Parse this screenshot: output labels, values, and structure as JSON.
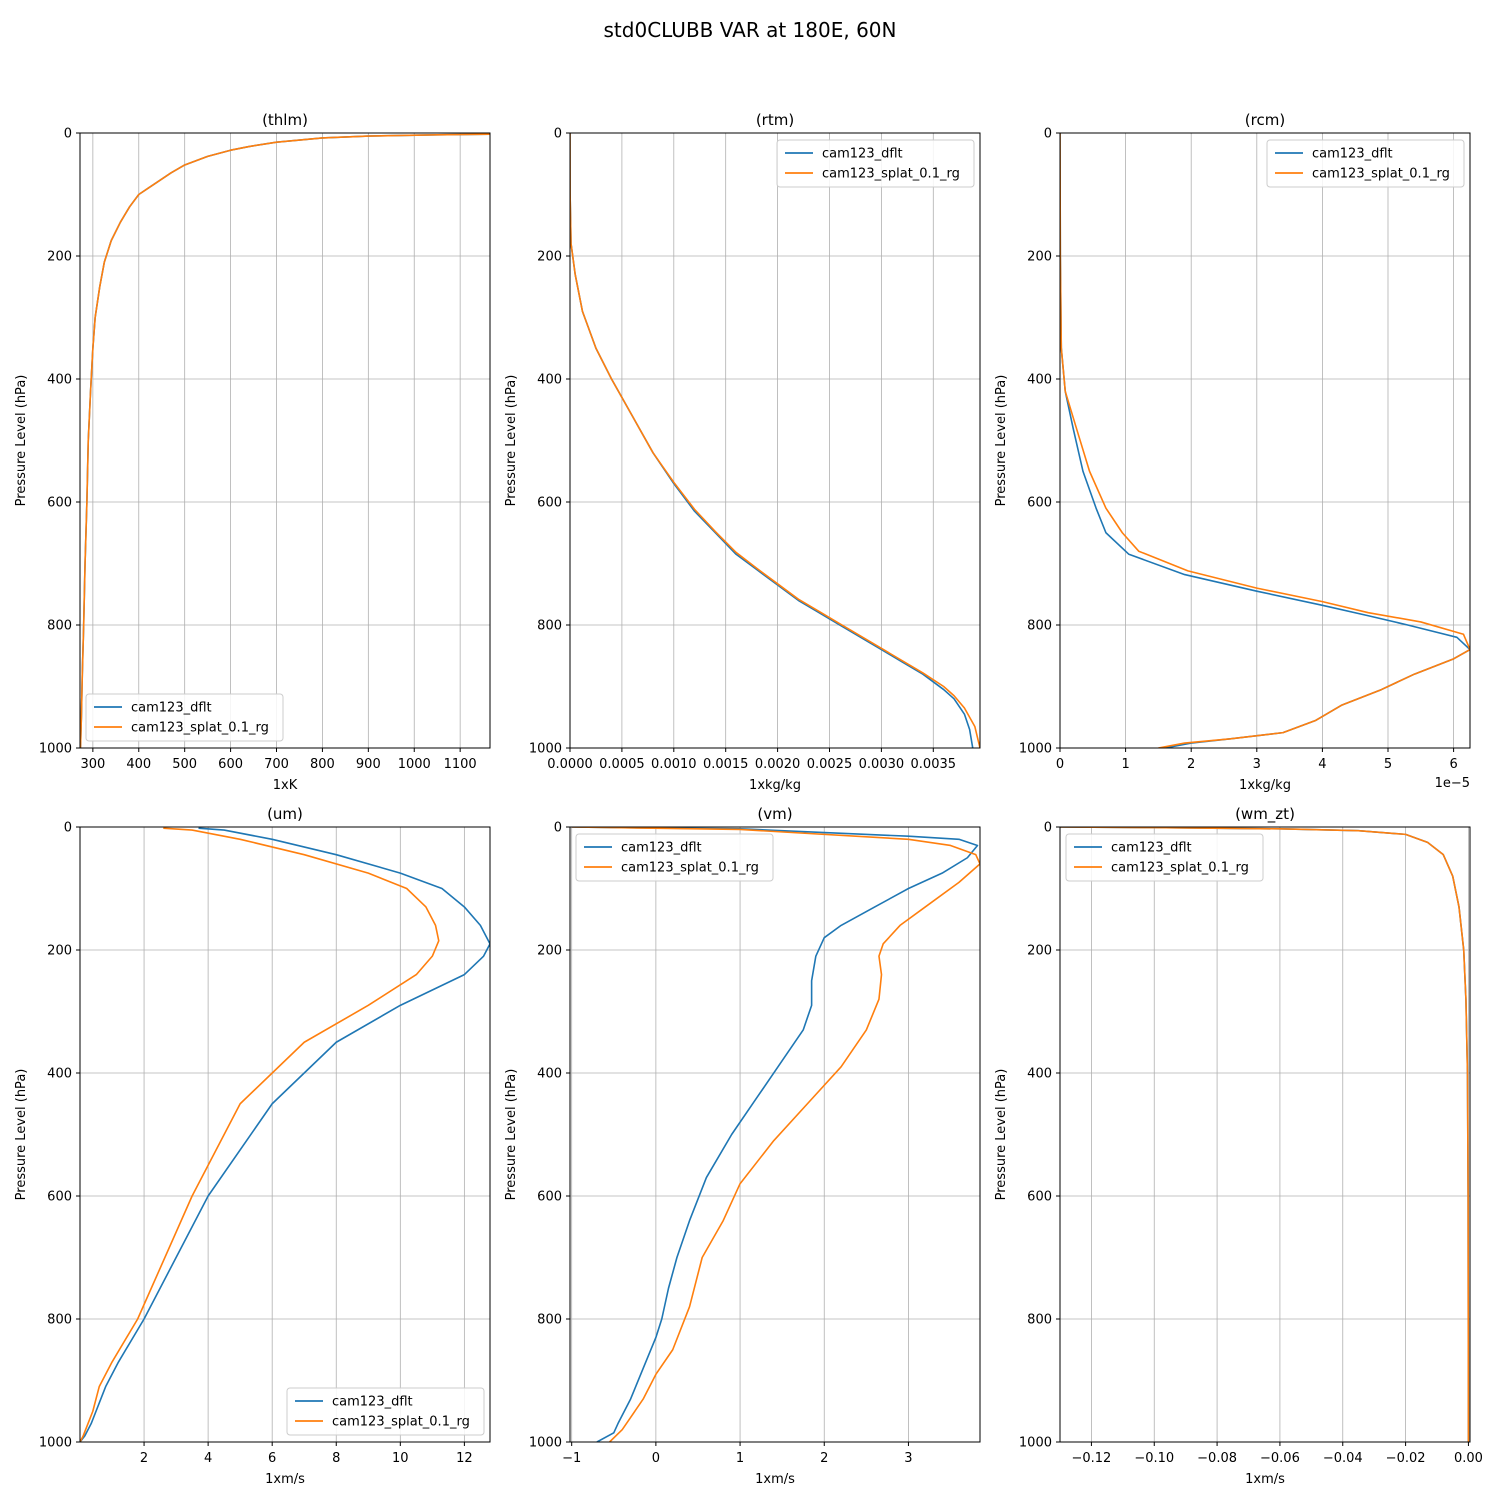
{
  "figure": {
    "title": "std0CLUBB VAR at 180E, 60N",
    "series_colors": {
      "cam123_dflt": "#1f77b4",
      "cam123_splat_0.1_rg": "#ff7f0e"
    }
  },
  "chart_data": [
    {
      "type": "line",
      "title": "(thlm)",
      "xlabel": "1xK",
      "ylabel": "Pressure Level (hPa)",
      "xlim": [
        272,
        1165
      ],
      "ylim": [
        1000,
        0
      ],
      "xticks": [
        300,
        400,
        500,
        600,
        700,
        800,
        900,
        1000,
        1100
      ],
      "xtick_labels": [
        "300",
        "400",
        "500",
        "600",
        "700",
        "800",
        "900",
        "1000",
        "1100"
      ],
      "yticks": [
        0,
        200,
        400,
        600,
        800,
        1000
      ],
      "ytick_labels": [
        "0",
        "200",
        "400",
        "600",
        "800",
        "1000"
      ],
      "grid": true,
      "legend_loc": "lower-left",
      "series": [
        {
          "name": "cam123_dflt",
          "color": "#1f77b4",
          "x": [
            1165,
            1050,
            900,
            800,
            700,
            640,
            600,
            550,
            500,
            470,
            440,
            420,
            400,
            380,
            360,
            340,
            325,
            315,
            305,
            300,
            295,
            290,
            287,
            283,
            280,
            277,
            275,
            273
          ],
          "y": [
            2,
            3,
            5,
            8,
            15,
            22,
            28,
            38,
            52,
            65,
            80,
            90,
            100,
            120,
            145,
            175,
            210,
            250,
            300,
            350,
            420,
            500,
            600,
            700,
            800,
            880,
            950,
            1000
          ]
        },
        {
          "name": "cam123_splat_0.1_rg",
          "color": "#ff7f0e",
          "x": [
            1165,
            1050,
            900,
            800,
            700,
            640,
            600,
            550,
            500,
            470,
            440,
            420,
            400,
            380,
            360,
            340,
            325,
            315,
            305,
            300,
            295,
            290,
            287,
            283,
            280,
            277,
            275,
            273
          ],
          "y": [
            2,
            3,
            5,
            8,
            15,
            22,
            28,
            38,
            52,
            65,
            80,
            90,
            100,
            120,
            145,
            175,
            210,
            250,
            300,
            350,
            420,
            500,
            600,
            700,
            800,
            880,
            950,
            1000
          ]
        }
      ]
    },
    {
      "type": "line",
      "title": "(rtm)",
      "xlabel": "1xkg/kg",
      "ylabel": "Pressure Level (hPa)",
      "xlim": [
        0,
        0.00395
      ],
      "ylim": [
        1000,
        0
      ],
      "xticks": [
        0,
        0.0005,
        0.001,
        0.0015,
        0.002,
        0.0025,
        0.003,
        0.0035
      ],
      "xtick_labels": [
        "0.0000",
        "0.0005",
        "0.0010",
        "0.0015",
        "0.0020",
        "0.0025",
        "0.0030",
        "0.0035"
      ],
      "yticks": [
        0,
        200,
        400,
        600,
        800,
        1000
      ],
      "ytick_labels": [
        "0",
        "200",
        "400",
        "600",
        "800",
        "1000"
      ],
      "grid": true,
      "legend_loc": "upper-right",
      "series": [
        {
          "name": "cam123_dflt",
          "color": "#1f77b4",
          "x": [
            0,
            1e-06,
            1e-05,
            5e-05,
            0.00012,
            0.00025,
            0.0004,
            0.0006,
            0.0008,
            0.001,
            0.0012,
            0.0014,
            0.0016,
            0.0018,
            0.002,
            0.0022,
            0.0024,
            0.0026,
            0.0028,
            0.003,
            0.0032,
            0.0034,
            0.0036,
            0.0037,
            0.0038,
            0.00385,
            0.00388
          ],
          "y": [
            0,
            100,
            180,
            230,
            290,
            350,
            400,
            460,
            520,
            570,
            615,
            650,
            685,
            710,
            735,
            760,
            780,
            800,
            820,
            840,
            860,
            880,
            905,
            920,
            945,
            970,
            1000
          ]
        },
        {
          "name": "cam123_splat_0.1_rg",
          "color": "#ff7f0e",
          "x": [
            0,
            1e-06,
            1e-05,
            5e-05,
            0.00012,
            0.00025,
            0.0004,
            0.0006,
            0.0008,
            0.001,
            0.0012,
            0.0014,
            0.0016,
            0.0018,
            0.002,
            0.0022,
            0.0024,
            0.0026,
            0.0028,
            0.003,
            0.0032,
            0.0034,
            0.0036,
            0.0037,
            0.0038,
            0.0039,
            0.00395
          ],
          "y": [
            0,
            100,
            180,
            230,
            290,
            350,
            400,
            460,
            520,
            568,
            612,
            648,
            682,
            708,
            733,
            758,
            778,
            798,
            818,
            838,
            858,
            878,
            900,
            915,
            935,
            965,
            1000
          ]
        }
      ]
    },
    {
      "type": "line",
      "title": "(rcm)",
      "xlabel": "1xkg/kg",
      "ylabel": "Pressure Level (hPa)",
      "x_offset_label": "1e−5",
      "xlim": [
        0,
        6.25
      ],
      "ylim": [
        1000,
        0
      ],
      "xticks": [
        0,
        1,
        2,
        3,
        4,
        5,
        6
      ],
      "xtick_labels": [
        "0",
        "1",
        "2",
        "3",
        "4",
        "5",
        "6"
      ],
      "yticks": [
        0,
        200,
        400,
        600,
        800,
        1000
      ],
      "ytick_labels": [
        "0",
        "200",
        "400",
        "600",
        "800",
        "1000"
      ],
      "grid": true,
      "legend_loc": "upper-right",
      "series": [
        {
          "name": "cam123_dflt",
          "color": "#1f77b4",
          "x": [
            0,
            0.005,
            0.02,
            0.08,
            0.2,
            0.35,
            0.55,
            0.7,
            1.05,
            1.9,
            3.0,
            4.0,
            4.7,
            5.3,
            6.05,
            6.25,
            6.0,
            5.4,
            4.9,
            4.3,
            3.9,
            3.4,
            2.6,
            2.0,
            1.6
          ],
          "y": [
            0,
            200,
            350,
            420,
            480,
            550,
            610,
            650,
            685,
            718,
            745,
            768,
            785,
            800,
            820,
            840,
            855,
            880,
            905,
            930,
            955,
            975,
            985,
            992,
            1000
          ]
        },
        {
          "name": "cam123_splat_0.1_rg",
          "color": "#ff7f0e",
          "x": [
            0,
            0.005,
            0.02,
            0.08,
            0.25,
            0.45,
            0.7,
            0.95,
            1.2,
            1.95,
            3.0,
            4.0,
            4.7,
            5.5,
            6.15,
            6.25,
            6.0,
            5.4,
            4.9,
            4.3,
            3.9,
            3.4,
            2.6,
            1.9,
            1.5
          ],
          "y": [
            0,
            200,
            350,
            420,
            480,
            550,
            610,
            650,
            680,
            712,
            740,
            762,
            780,
            795,
            815,
            840,
            855,
            880,
            905,
            930,
            955,
            975,
            985,
            992,
            1000
          ]
        }
      ]
    },
    {
      "type": "line",
      "title": "(um)",
      "xlabel": "1xm/s",
      "ylabel": "Pressure Level (hPa)",
      "xlim": [
        0,
        12.8
      ],
      "ylim": [
        1000,
        0
      ],
      "xticks": [
        2,
        4,
        6,
        8,
        10,
        12
      ],
      "xtick_labels": [
        "2",
        "4",
        "6",
        "8",
        "10",
        "12"
      ],
      "yticks": [
        0,
        200,
        400,
        600,
        800,
        1000
      ],
      "ytick_labels": [
        "0",
        "200",
        "400",
        "600",
        "800",
        "1000"
      ],
      "grid": true,
      "legend_loc": "lower-right",
      "series": [
        {
          "name": "cam123_dflt",
          "color": "#1f77b4",
          "x": [
            3.7,
            4.5,
            6,
            8,
            10,
            11.3,
            12,
            12.5,
            12.8,
            12.6,
            12,
            10,
            8,
            6,
            4,
            2,
            1.2,
            0.8,
            0.5,
            0.35,
            0.15,
            0
          ],
          "y": [
            2,
            5,
            20,
            45,
            75,
            100,
            130,
            160,
            190,
            210,
            240,
            290,
            350,
            450,
            600,
            800,
            870,
            910,
            950,
            970,
            990,
            1000
          ]
        },
        {
          "name": "cam123_splat_0.1_rg",
          "color": "#ff7f0e",
          "x": [
            2.6,
            3.5,
            5,
            7,
            9,
            10.2,
            10.8,
            11.1,
            11.2,
            11.0,
            10.5,
            9,
            7,
            5,
            3.5,
            1.8,
            1.0,
            0.6,
            0.4,
            0.25,
            0.1,
            0
          ],
          "y": [
            2,
            5,
            20,
            45,
            75,
            100,
            130,
            160,
            185,
            210,
            240,
            290,
            350,
            450,
            600,
            800,
            870,
            910,
            950,
            970,
            990,
            1000
          ]
        }
      ]
    },
    {
      "type": "line",
      "title": "(vm)",
      "xlabel": "1xm/s",
      "ylabel": "Pressure Level (hPa)",
      "xlim": [
        -1.02,
        3.85
      ],
      "ylim": [
        1000,
        0
      ],
      "xticks": [
        -1,
        0,
        1,
        2,
        3
      ],
      "xtick_labels": [
        "−1",
        "0",
        "1",
        "2",
        "3"
      ],
      "yticks": [
        0,
        200,
        400,
        600,
        800,
        1000
      ],
      "ytick_labels": [
        "0",
        "200",
        "400",
        "600",
        "800",
        "1000"
      ],
      "grid": true,
      "legend_loc": "upper-left",
      "series": [
        {
          "name": "cam123_dflt",
          "color": "#1f77b4",
          "x": [
            -1,
            -0.5,
            1,
            3,
            3.6,
            3.82,
            3.7,
            3.4,
            3.0,
            2.6,
            2.2,
            2.0,
            1.9,
            1.85,
            1.85,
            1.75,
            1.5,
            1.2,
            0.9,
            0.6,
            0.4,
            0.25,
            0.15,
            0.07,
            0,
            -0.15,
            -0.3,
            -0.45,
            -0.5,
            -0.7
          ],
          "y": [
            0,
            1,
            3,
            15,
            20,
            30,
            50,
            75,
            100,
            130,
            160,
            180,
            210,
            250,
            290,
            330,
            380,
            440,
            500,
            570,
            640,
            700,
            750,
            800,
            830,
            880,
            930,
            970,
            985,
            1000
          ]
        },
        {
          "name": "cam123_splat_0.1_rg",
          "color": "#ff7f0e",
          "x": [
            -1,
            -0.5,
            1,
            3,
            3.5,
            3.8,
            3.85,
            3.6,
            3.2,
            2.9,
            2.7,
            2.65,
            2.68,
            2.65,
            2.5,
            2.2,
            1.8,
            1.4,
            1.0,
            0.8,
            0.55,
            0.4,
            0.2,
            0,
            -0.15,
            -0.3,
            -0.4,
            -0.55
          ],
          "y": [
            0,
            1,
            4,
            20,
            30,
            45,
            60,
            90,
            130,
            160,
            190,
            210,
            240,
            280,
            330,
            390,
            450,
            510,
            580,
            640,
            700,
            780,
            850,
            890,
            930,
            960,
            980,
            1000
          ]
        }
      ]
    },
    {
      "type": "line",
      "title": "(wm_zt)",
      "xlabel": "1xm/s",
      "ylabel": "Pressure Level (hPa)",
      "xlim": [
        -0.13,
        0.0005
      ],
      "ylim": [
        1000,
        0
      ],
      "xticks": [
        -0.12,
        -0.1,
        -0.08,
        -0.06,
        -0.04,
        -0.02,
        0
      ],
      "xtick_labels": [
        "−0.12",
        "−0.10",
        "−0.08",
        "−0.06",
        "−0.04",
        "−0.02",
        "0.00"
      ],
      "yticks": [
        0,
        200,
        400,
        600,
        800,
        1000
      ],
      "ytick_labels": [
        "0",
        "200",
        "400",
        "600",
        "800",
        "1000"
      ],
      "grid": true,
      "legend_loc": "upper-left",
      "series": [
        {
          "name": "cam123_dflt",
          "color": "#1f77b4",
          "x": [
            -0.13,
            -0.1,
            -0.06,
            -0.035,
            -0.02,
            -0.013,
            -0.008,
            -0.005,
            -0.003,
            -0.0015,
            -0.0008,
            -0.0003,
            -0.0001,
            -5e-05,
            0
          ],
          "y": [
            0,
            1,
            3,
            6,
            12,
            25,
            45,
            80,
            130,
            200,
            280,
            400,
            600,
            800,
            1000
          ]
        },
        {
          "name": "cam123_splat_0.1_rg",
          "color": "#ff7f0e",
          "x": [
            -0.13,
            -0.1,
            -0.06,
            -0.035,
            -0.02,
            -0.013,
            -0.008,
            -0.005,
            -0.003,
            -0.0015,
            -0.0008,
            -0.0003,
            -0.0001,
            -5e-05,
            0
          ],
          "y": [
            0,
            1,
            3,
            6,
            12,
            25,
            45,
            80,
            130,
            200,
            280,
            400,
            600,
            800,
            1000
          ]
        }
      ]
    }
  ]
}
